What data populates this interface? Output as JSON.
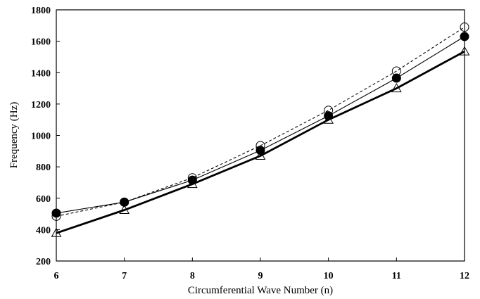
{
  "chart_data": {
    "type": "line",
    "xlabel": "Circumferential Wave Number (n)",
    "ylabel": "Frequency (Hz)",
    "x": [
      6,
      7,
      8,
      9,
      10,
      11,
      12
    ],
    "xlim": [
      6,
      12
    ],
    "ylim": [
      200,
      1800
    ],
    "xticks": [
      6,
      7,
      8,
      9,
      10,
      11,
      12
    ],
    "yticks": [
      200,
      400,
      600,
      800,
      1000,
      1200,
      1400,
      1600,
      1800
    ],
    "grid": false,
    "legend": "none",
    "series": [
      {
        "values": [
          485,
          575,
          730,
          935,
          1160,
          1410,
          1690
        ],
        "line_style": "dashed",
        "line_width": "thin",
        "marker": "open-circle",
        "color": "#000000"
      },
      {
        "values": [
          505,
          575,
          715,
          905,
          1125,
          1365,
          1630
        ],
        "line_style": "solid",
        "line_width": "thin",
        "marker": "filled-circle",
        "color": "#000000"
      },
      {
        "values": [
          378,
          525,
          690,
          870,
          1100,
          1300,
          1535
        ],
        "line_style": "solid",
        "line_width": "thick",
        "marker": "open-triangle",
        "color": "#000000"
      }
    ]
  }
}
